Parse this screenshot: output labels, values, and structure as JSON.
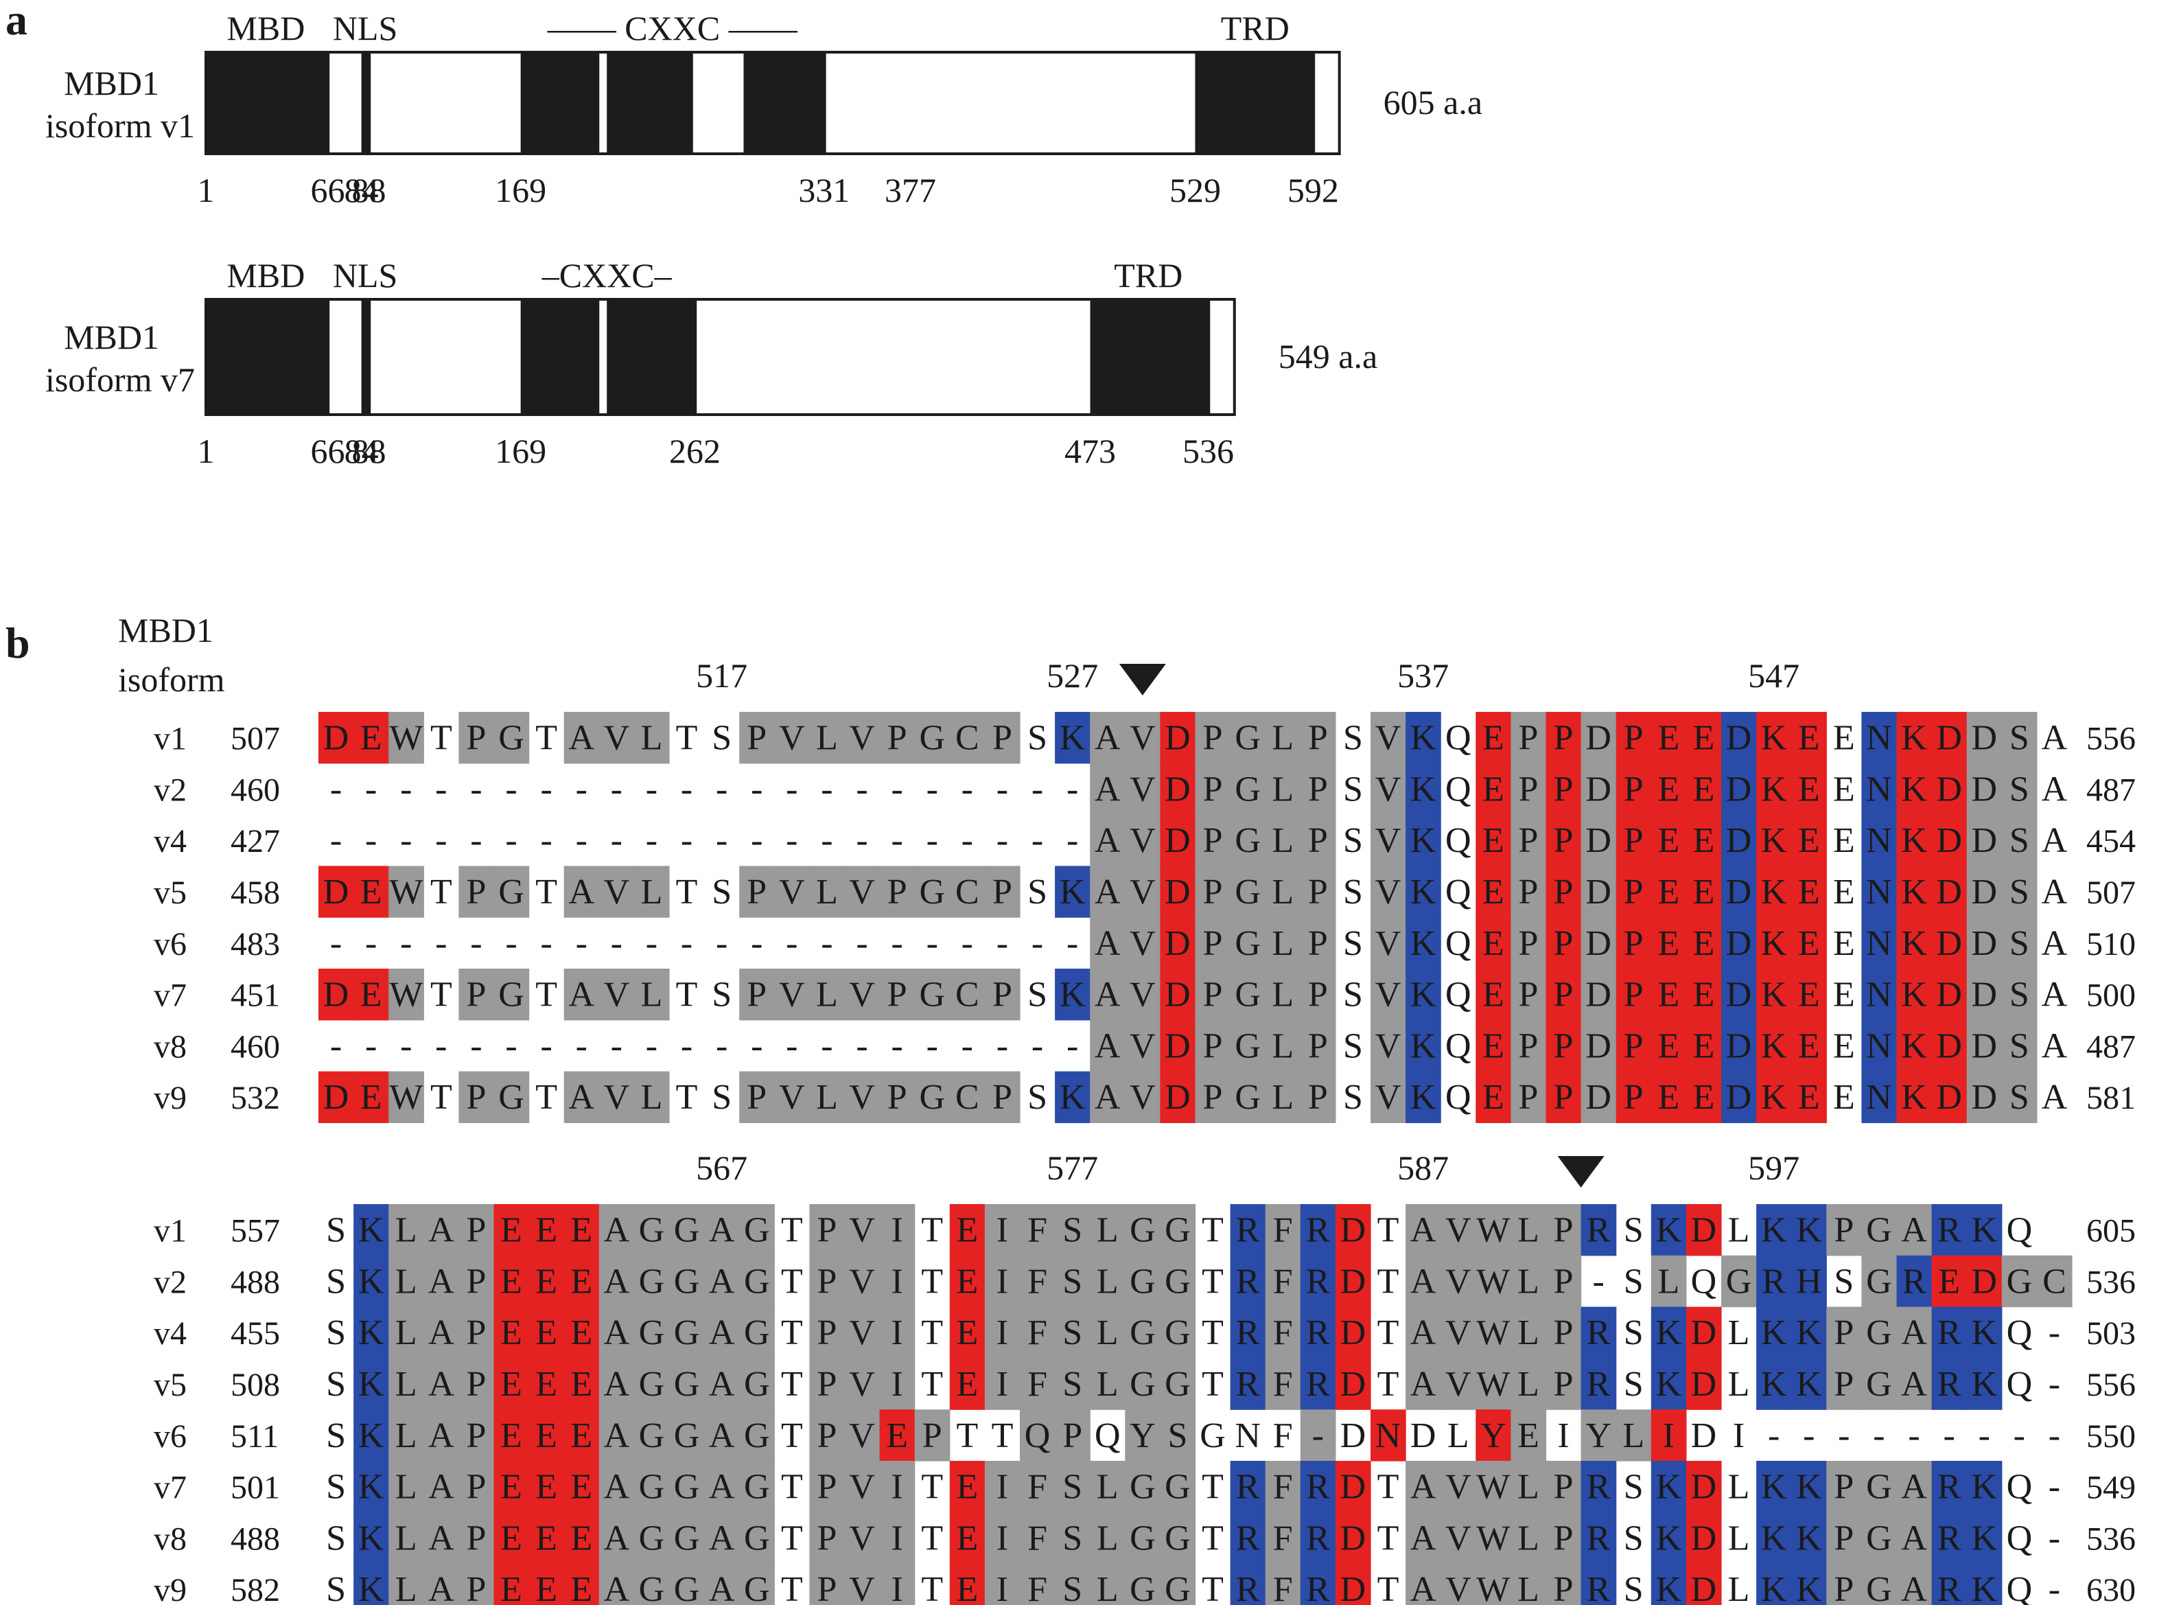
{
  "panel_a_label": "a",
  "panel_b_label": "b",
  "colors": {
    "domain_fill": "#1c1c1c",
    "gray": "#9a9a9a",
    "red": "#e52222",
    "blue": "#2a4ca8",
    "white": "#ffffff",
    "text": "#1a1a1a"
  },
  "panel_a": {
    "isoforms": [
      {
        "label_line1": "MBD1",
        "label_line2": "isoform v1",
        "total_length": 605,
        "length_label": "605 a.a",
        "domains": [
          [
            1,
            66
          ],
          [
            84,
            88
          ],
          [
            169,
            210
          ],
          [
            215,
            260
          ],
          [
            288,
            331
          ],
          [
            529,
            592
          ]
        ],
        "ticks": [
          "1",
          "66",
          "84",
          "88",
          "169",
          "331",
          "377",
          "529",
          "592"
        ],
        "tick_values": [
          1,
          66,
          84,
          88,
          169,
          331,
          377,
          529,
          592
        ],
        "domain_labels": [
          {
            "text": "MBD",
            "at": 33
          },
          {
            "text": "NLS",
            "at": 86
          },
          {
            "text": "—— CXXC ——",
            "at": 250
          },
          {
            "text": "TRD",
            "at": 561
          }
        ]
      },
      {
        "label_line1": "MBD1",
        "label_line2": "isoform v7",
        "total_length": 549,
        "length_label": "549 a.a",
        "domains": [
          [
            1,
            66
          ],
          [
            84,
            88
          ],
          [
            169,
            210
          ],
          [
            215,
            262
          ],
          [
            473,
            536
          ]
        ],
        "ticks": [
          "1",
          "66",
          "84",
          "88",
          "169",
          "262",
          "473",
          "536"
        ],
        "tick_values": [
          1,
          66,
          84,
          88,
          169,
          262,
          473,
          536
        ],
        "domain_labels": [
          {
            "text": "MBD",
            "at": 33
          },
          {
            "text": "NLS",
            "at": 86
          },
          {
            "text": "–CXXC–",
            "at": 215
          },
          {
            "text": "TRD",
            "at": 504
          }
        ]
      }
    ]
  },
  "panel_b": {
    "header_line1": "MBD1",
    "header_line2": "isoform",
    "blocks": [
      {
        "ruler": [
          {
            "label": "517",
            "col": 11
          },
          {
            "label": "527",
            "col": 21
          },
          {
            "label": "537",
            "col": 31
          },
          {
            "label": "547",
            "col": 41
          }
        ],
        "arrow_col": 23.5,
        "rows": [
          {
            "id": "v1",
            "start": "507",
            "end": "556",
            "seq": "DEWTPGTAVLTSPVLVPGCPSKAVDPGLPSVKQEPPDPEEDKEENKDDSA",
            "col": "RRGWGGWGGGWWGGGGGGGGWBGGRGGGGWGBWRGRGRRRBRRWBRRGG"
          },
          {
            "id": "v2",
            "start": "460",
            "end": "487",
            "seq": "----------------------AVDPGLPSVKQEPPDPEEDKEENKDDSA",
            "col": "WWWWWWWWWWWWWWWWWWWWWWGGRGGGGWGBWRGRGRRRBRRWBRRGG"
          },
          {
            "id": "v4",
            "start": "427",
            "end": "454",
            "seq": "----------------------AVDPGLPSVKQEPPDPEEDKEENKDDSA",
            "col": "WWWWWWWWWWWWWWWWWWWWWWGGRGGGGWGBWRGRGRRRBRRWBRRGG"
          },
          {
            "id": "v5",
            "start": "458",
            "end": "507",
            "seq": "DEWTPGTAVLTSPVLVPGCPSKAVDPGLPSVKQEPPDPEEDKEENKDDSA",
            "col": "RRGWGGWGGGWWGGGGGGGGWBGGRGGGGWGBWRGRGRRRBRRWBRRGG"
          },
          {
            "id": "v6",
            "start": "483",
            "end": "510",
            "seq": "----------------------AVDPGLPSVKQEPPDPEEDKEENKDDSA",
            "col": "WWWWWWWWWWWWWWWWWWWWWWGGRGGGGWGBWRGRGRRRBRRWBRRGG"
          },
          {
            "id": "v7",
            "start": "451",
            "end": "500",
            "seq": "DEWTPGTAVLTSPVLVPGCPSKAVDPGLPSVKQEPPDPEEDKEENKDDSA",
            "col": "RRGWGGWGGGWWGGGGGGGGWBGGRGGGGWGBWRGRGRRRBRRWBRRGG"
          },
          {
            "id": "v8",
            "start": "460",
            "end": "487",
            "seq": "----------------------AVDPGLPSVKQEPPDPEEDKEENKDDSA",
            "col": "WWWWWWWWWWWWWWWWWWWWWWGGRGGGGWGBWRGRGRRRBRRWBRRGG"
          },
          {
            "id": "v9",
            "start": "532",
            "end": "581",
            "seq": "DEWTPGTAVLTSPVLVPGCPSKAVDPGLPSVKQEPPDPEEDKEENKDDSA",
            "col": "RRGWGGWGGGWWGGGGGGGGWBGGRGGGGWGBWRGRGRRRBRRWBRRGG"
          }
        ]
      },
      {
        "ruler": [
          {
            "label": "567",
            "col": 11
          },
          {
            "label": "577",
            "col": 21
          },
          {
            "label": "587",
            "col": 31
          },
          {
            "label": "597",
            "col": 41
          }
        ],
        "arrow_col": 36,
        "rows": [
          {
            "id": "v1",
            "start": "557",
            "end": "605",
            "seq": "SKLAPEEEAGGAGTPVITEIFSLGGTRFRDTAVWLPRSKDLKKPGARKQ ",
            "col": "WBGGGRRRGGGGGWGGGWRGGGGGGWBGBRWGGGGGBWBRWBBGGGBBW"
          },
          {
            "id": "v2",
            "start": "488",
            "end": "536",
            "seq": "SKLAPEEEAGGAGTPVITEIFSLGGTRFRDTAVWLP-SLQGRHSGREDGC",
            "col": "WBGGGRRRGGGGGWGGGWRGGGGGGWBGBRWGGGGGWWGWGBBWGBRRGG"
          },
          {
            "id": "v4",
            "start": "455",
            "end": "503",
            "seq": "SKLAPEEEAGGAGTPVITEIFSLGGTRFRDTAVWLPRSKDLKKPGARKQ-",
            "col": "WBGGGRRRGGGGGWGGGWRGGGGGGWBGBRWGGGGGBWBRWBBGGGBBWW"
          },
          {
            "id": "v5",
            "start": "508",
            "end": "556",
            "seq": "SKLAPEEEAGGAGTPVITEIFSLGGTRFRDTAVWLPRSKDLKKPGARKQ-",
            "col": "WBGGGRRRGGGGGWGGGWRGGGGGGWBGBRWGGGGGBWBRWBBGGGBBWW"
          },
          {
            "id": "v6",
            "start": "511",
            "end": "550",
            "seq": "SKLAPEEEAGGAGTPVEPTTQPQYSGNF-DNDLYEIYLIDI---------",
            "col": "WBGGGRRRGGGGGWGGRGWWGGWGGWWWGWRWWRGWGGRWWWWWWWWW"
          },
          {
            "id": "v7",
            "start": "501",
            "end": "549",
            "seq": "SKLAPEEEAGGAGTPVITEIFSLGGTRFRDTAVWLPRSKDLKKPGARKQ-",
            "col": "WBGGGRRRGGGGGWGGGWRGGGGGGWBGBRWGGGGGBWBRWBBGGGBBWW"
          },
          {
            "id": "v8",
            "start": "488",
            "end": "536",
            "seq": "SKLAPEEEAGGAGTPVITEIFSLGGTRFRDTAVWLPRSKDLKKPGARKQ-",
            "col": "WBGGGRRRGGGGGWGGGWRGGGGGGWBGBRWGGGGGBWBRWBBGGGBBWW"
          },
          {
            "id": "v9",
            "start": "582",
            "end": "630",
            "seq": "SKLAPEEEAGGAGTPVITEIFSLGGTRFRDTAVWLPRSKDLKKPGARKQ-",
            "col": "WBGGGRRRGGGGGWGGGWRGGGGGGWBGBRWGGGGGBWBRWBBGGGBBWW"
          }
        ]
      }
    ]
  }
}
